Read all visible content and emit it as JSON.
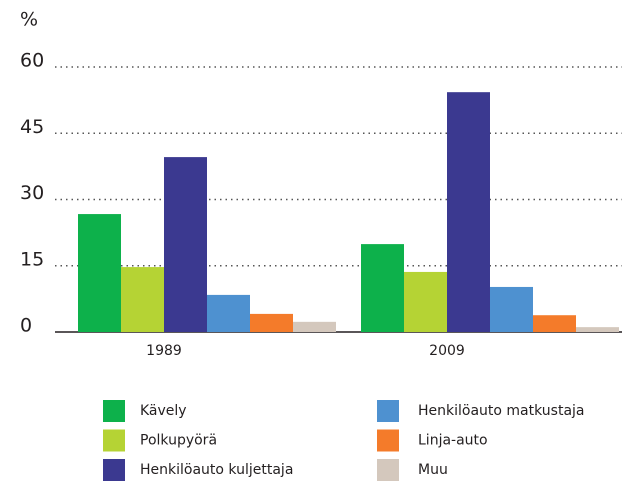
{
  "chart_data": {
    "type": "bar",
    "ylabel": "%",
    "categories": [
      "1989",
      "2009"
    ],
    "series": [
      {
        "name": "Kävely",
        "color": "#0db14b",
        "values": [
          26.7,
          19.9
        ]
      },
      {
        "name": "Polkupyörä",
        "color": "#b5d334",
        "values": [
          14.7,
          13.6
        ]
      },
      {
        "name": "Henkilöauto kuljettaja",
        "color": "#3b3990",
        "values": [
          39.6,
          54.3
        ]
      },
      {
        "name": "Henkilöauto matkustaja",
        "color": "#4e91d0",
        "values": [
          8.4,
          10.2
        ]
      },
      {
        "name": "Linja-auto",
        "color": "#f47b2a",
        "values": [
          4.1,
          3.8
        ]
      },
      {
        "name": "Muu",
        "color": "#d4c8bd",
        "values": [
          2.3,
          1.1
        ]
      }
    ],
    "ylim": [
      0,
      60
    ],
    "yticks": [
      0,
      15,
      30,
      45,
      60
    ],
    "grid": true
  }
}
